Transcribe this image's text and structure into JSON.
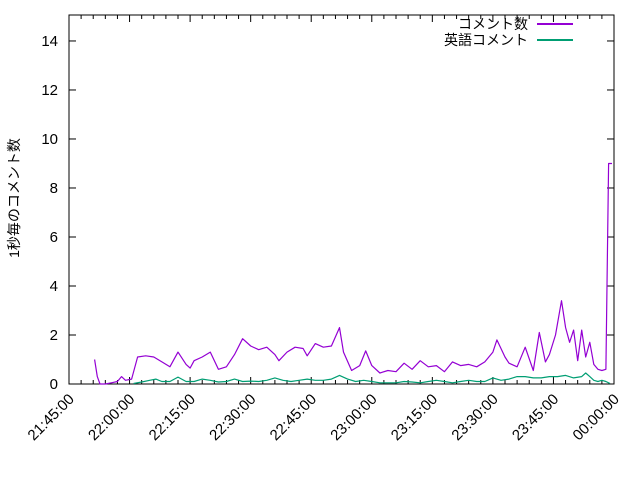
{
  "chart_data": {
    "type": "line",
    "title": "",
    "xlabel": "",
    "ylabel": "1秒毎のコメント数",
    "grid": false,
    "legend_position": "top-right-inside",
    "x_axis": {
      "start": "21:45:00",
      "end": "00:00:00",
      "major_tick_minutes": 15,
      "minor_tick_minutes": 3,
      "tick_labels": [
        "21:45:00",
        "22:00:00",
        "22:15:00",
        "22:30:00",
        "22:45:00",
        "23:00:00",
        "23:15:00",
        "23:30:00",
        "23:45:00",
        "00:00:00"
      ]
    },
    "y_axis": {
      "min": 0,
      "max": 15.06,
      "tick_step": 2,
      "tick_labels": [
        "0",
        "2",
        "4",
        "6",
        "8",
        "10",
        "12",
        "14"
      ]
    },
    "series": [
      {
        "name": "コメント数",
        "color": "#9400d3",
        "points": [
          [
            "21:51:20",
            1.0
          ],
          [
            "21:52:00",
            0.3
          ],
          [
            "21:52:40",
            0.0
          ],
          [
            "21:54:00",
            0.0
          ],
          [
            "21:55:30",
            0.05
          ],
          [
            "21:57:00",
            0.1
          ],
          [
            "21:58:00",
            0.3
          ],
          [
            "21:59:00",
            0.15
          ],
          [
            "22:00:30",
            0.2
          ],
          [
            "22:02:00",
            1.1
          ],
          [
            "22:04:00",
            1.15
          ],
          [
            "22:06:00",
            1.1
          ],
          [
            "22:08:00",
            0.9
          ],
          [
            "22:10:00",
            0.7
          ],
          [
            "22:12:00",
            1.3
          ],
          [
            "22:14:00",
            0.8
          ],
          [
            "22:15:00",
            0.65
          ],
          [
            "22:16:00",
            0.95
          ],
          [
            "22:18:00",
            1.1
          ],
          [
            "22:20:00",
            1.3
          ],
          [
            "22:22:00",
            0.6
          ],
          [
            "22:24:00",
            0.7
          ],
          [
            "22:26:00",
            1.2
          ],
          [
            "22:28:00",
            1.85
          ],
          [
            "22:30:00",
            1.55
          ],
          [
            "22:32:00",
            1.4
          ],
          [
            "22:34:00",
            1.5
          ],
          [
            "22:36:00",
            1.2
          ],
          [
            "22:37:00",
            0.95
          ],
          [
            "22:39:00",
            1.3
          ],
          [
            "22:41:00",
            1.5
          ],
          [
            "22:43:00",
            1.45
          ],
          [
            "22:44:00",
            1.15
          ],
          [
            "22:46:00",
            1.65
          ],
          [
            "22:48:00",
            1.5
          ],
          [
            "22:50:00",
            1.55
          ],
          [
            "22:52:00",
            2.3
          ],
          [
            "22:53:00",
            1.3
          ],
          [
            "22:55:00",
            0.55
          ],
          [
            "22:57:00",
            0.75
          ],
          [
            "22:58:30",
            1.35
          ],
          [
            "23:00:00",
            0.75
          ],
          [
            "23:02:00",
            0.45
          ],
          [
            "23:04:00",
            0.55
          ],
          [
            "23:06:00",
            0.5
          ],
          [
            "23:08:00",
            0.85
          ],
          [
            "23:10:00",
            0.6
          ],
          [
            "23:12:00",
            0.95
          ],
          [
            "23:14:00",
            0.7
          ],
          [
            "23:16:00",
            0.75
          ],
          [
            "23:18:00",
            0.5
          ],
          [
            "23:20:00",
            0.9
          ],
          [
            "23:22:00",
            0.75
          ],
          [
            "23:24:00",
            0.8
          ],
          [
            "23:26:00",
            0.7
          ],
          [
            "23:28:00",
            0.9
          ],
          [
            "23:30:00",
            1.3
          ],
          [
            "23:31:00",
            1.8
          ],
          [
            "23:33:00",
            1.1
          ],
          [
            "23:34:00",
            0.85
          ],
          [
            "23:36:00",
            0.7
          ],
          [
            "23:38:00",
            1.5
          ],
          [
            "23:40:00",
            0.55
          ],
          [
            "23:41:30",
            2.1
          ],
          [
            "23:43:00",
            0.9
          ],
          [
            "23:44:00",
            1.2
          ],
          [
            "23:45:30",
            2.0
          ],
          [
            "23:47:00",
            3.4
          ],
          [
            "23:48:00",
            2.3
          ],
          [
            "23:49:00",
            1.7
          ],
          [
            "23:50:00",
            2.2
          ],
          [
            "23:51:00",
            0.95
          ],
          [
            "23:52:00",
            2.2
          ],
          [
            "23:53:00",
            1.1
          ],
          [
            "23:54:00",
            1.7
          ],
          [
            "23:55:00",
            0.8
          ],
          [
            "23:56:00",
            0.6
          ],
          [
            "23:57:00",
            0.55
          ],
          [
            "23:58:00",
            0.6
          ],
          [
            "23:58:40",
            9.0
          ],
          [
            "23:59:30",
            9.0
          ]
        ]
      },
      {
        "name": "英語コメント",
        "color": "#009e73",
        "points": [
          [
            "22:01:00",
            0.02
          ],
          [
            "22:03:00",
            0.08
          ],
          [
            "22:05:00",
            0.15
          ],
          [
            "22:06:30",
            0.2
          ],
          [
            "22:08:00",
            0.1
          ],
          [
            "22:10:00",
            0.1
          ],
          [
            "22:12:00",
            0.28
          ],
          [
            "22:14:00",
            0.1
          ],
          [
            "22:16:00",
            0.1
          ],
          [
            "22:18:00",
            0.2
          ],
          [
            "22:20:00",
            0.15
          ],
          [
            "22:22:00",
            0.08
          ],
          [
            "22:24:00",
            0.1
          ],
          [
            "22:26:00",
            0.2
          ],
          [
            "22:28:00",
            0.1
          ],
          [
            "22:30:00",
            0.12
          ],
          [
            "22:32:00",
            0.1
          ],
          [
            "22:34:00",
            0.15
          ],
          [
            "22:36:00",
            0.25
          ],
          [
            "22:38:00",
            0.15
          ],
          [
            "22:40:00",
            0.1
          ],
          [
            "22:42:00",
            0.15
          ],
          [
            "22:44:00",
            0.2
          ],
          [
            "22:46:00",
            0.15
          ],
          [
            "22:48:00",
            0.15
          ],
          [
            "22:50:00",
            0.2
          ],
          [
            "22:52:00",
            0.35
          ],
          [
            "22:54:00",
            0.2
          ],
          [
            "22:56:00",
            0.1
          ],
          [
            "22:58:00",
            0.15
          ],
          [
            "23:00:00",
            0.1
          ],
          [
            "23:02:00",
            0.05
          ],
          [
            "23:04:00",
            0.05
          ],
          [
            "23:06:00",
            0.05
          ],
          [
            "23:08:00",
            0.1
          ],
          [
            "23:10:00",
            0.08
          ],
          [
            "23:12:00",
            0.05
          ],
          [
            "23:14:00",
            0.1
          ],
          [
            "23:16:00",
            0.15
          ],
          [
            "23:18:00",
            0.1
          ],
          [
            "23:20:00",
            0.05
          ],
          [
            "23:22:00",
            0.1
          ],
          [
            "23:24:00",
            0.15
          ],
          [
            "23:26:00",
            0.1
          ],
          [
            "23:28:00",
            0.1
          ],
          [
            "23:30:00",
            0.25
          ],
          [
            "23:32:00",
            0.15
          ],
          [
            "23:34:00",
            0.2
          ],
          [
            "23:36:00",
            0.3
          ],
          [
            "23:38:00",
            0.3
          ],
          [
            "23:40:00",
            0.25
          ],
          [
            "23:42:00",
            0.25
          ],
          [
            "23:44:00",
            0.3
          ],
          [
            "23:46:00",
            0.3
          ],
          [
            "23:48:00",
            0.35
          ],
          [
            "23:50:00",
            0.25
          ],
          [
            "23:52:00",
            0.3
          ],
          [
            "23:53:00",
            0.45
          ],
          [
            "23:54:00",
            0.3
          ],
          [
            "23:55:00",
            0.15
          ],
          [
            "23:56:00",
            0.1
          ],
          [
            "23:57:00",
            0.15
          ],
          [
            "23:58:00",
            0.1
          ],
          [
            "23:59:00",
            0.02
          ]
        ]
      }
    ]
  }
}
